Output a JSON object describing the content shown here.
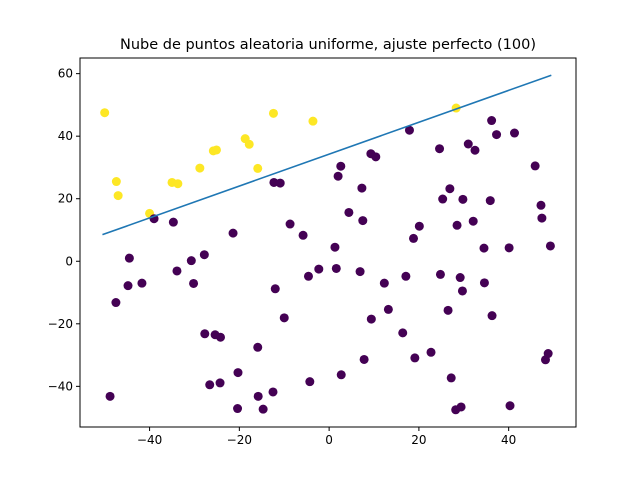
{
  "chart_data": {
    "type": "scatter",
    "title": "Nube de puntos aleatoria uniforme, ajuste perfecto (100)",
    "xlabel": "",
    "ylabel": "",
    "xlim": [
      -55.5,
      55
    ],
    "ylim": [
      -53,
      65
    ],
    "xticks": [
      -40,
      -20,
      0,
      20,
      40
    ],
    "yticks": [
      -40,
      -20,
      0,
      20,
      40,
      60
    ],
    "xtick_labels": [
      "−40",
      "−20",
      "0",
      "20",
      "40"
    ],
    "ytick_labels": [
      "−40",
      "−20",
      "0",
      "20",
      "40",
      "60"
    ],
    "grid": false,
    "legend": "none",
    "colors": {
      "above_line": "#fde725",
      "below_line": "#440154",
      "fit_line": "#1f77b4"
    },
    "fit_line": {
      "x": [
        -50.5,
        49.5
      ],
      "y": [
        8.5,
        59.5
      ]
    },
    "series": [
      {
        "class": "above",
        "points": [
          [
            -50.0,
            47.5
          ],
          [
            -47.4,
            25.5
          ],
          [
            -47.0,
            21.0
          ],
          [
            -40.0,
            15.3
          ],
          [
            -35.0,
            25.2
          ],
          [
            -33.7,
            24.8
          ],
          [
            -28.8,
            29.8
          ],
          [
            -25.8,
            35.3
          ],
          [
            -25.1,
            35.6
          ],
          [
            -18.7,
            39.2
          ],
          [
            -17.8,
            37.4
          ],
          [
            -15.9,
            29.7
          ],
          [
            -12.4,
            47.3
          ],
          [
            -3.6,
            44.8
          ],
          [
            28.3,
            49.0
          ]
        ]
      },
      {
        "class": "below",
        "points": [
          [
            -48.8,
            -43.2
          ],
          [
            -47.5,
            -13.2
          ],
          [
            -44.8,
            -7.8
          ],
          [
            -44.5,
            1.0
          ],
          [
            -41.7,
            -7.0
          ],
          [
            -39.0,
            13.6
          ],
          [
            -34.7,
            12.5
          ],
          [
            -33.9,
            -3.1
          ],
          [
            -30.7,
            0.2
          ],
          [
            -30.2,
            -7.1
          ],
          [
            -27.8,
            2.1
          ],
          [
            -27.7,
            -23.2
          ],
          [
            -26.6,
            -39.5
          ],
          [
            -25.4,
            -23.5
          ],
          [
            -24.3,
            -38.9
          ],
          [
            -24.2,
            -24.3
          ],
          [
            -21.4,
            9.0
          ],
          [
            -20.3,
            -35.6
          ],
          [
            -20.4,
            -47.1
          ],
          [
            -15.9,
            -27.5
          ],
          [
            -15.8,
            -43.2
          ],
          [
            -14.7,
            -47.3
          ],
          [
            -12.5,
            -41.8
          ],
          [
            -12.3,
            25.2
          ],
          [
            -12.0,
            -8.8
          ],
          [
            -10.9,
            25.0
          ],
          [
            -10.0,
            -18.1
          ],
          [
            -8.7,
            11.9
          ],
          [
            -5.8,
            8.3
          ],
          [
            -4.6,
            -4.8
          ],
          [
            -4.3,
            -38.5
          ],
          [
            -2.3,
            -2.5
          ],
          [
            1.3,
            4.5
          ],
          [
            1.6,
            -2.3
          ],
          [
            2.0,
            27.2
          ],
          [
            2.6,
            30.4
          ],
          [
            2.7,
            -36.3
          ],
          [
            4.4,
            15.6
          ],
          [
            6.9,
            -3.3
          ],
          [
            7.3,
            23.4
          ],
          [
            7.5,
            13.0
          ],
          [
            7.8,
            -31.4
          ],
          [
            9.3,
            34.4
          ],
          [
            9.4,
            -18.5
          ],
          [
            10.4,
            33.4
          ],
          [
            12.3,
            -7.0
          ],
          [
            13.2,
            -15.4
          ],
          [
            16.4,
            -22.9
          ],
          [
            17.1,
            -4.8
          ],
          [
            17.9,
            41.9
          ],
          [
            18.8,
            7.3
          ],
          [
            19.1,
            -30.9
          ],
          [
            20.1,
            11.2
          ],
          [
            22.7,
            -29.1
          ],
          [
            24.6,
            36.0
          ],
          [
            24.8,
            -4.2
          ],
          [
            25.3,
            19.9
          ],
          [
            26.5,
            -15.7
          ],
          [
            26.9,
            23.2
          ],
          [
            27.2,
            -37.3
          ],
          [
            28.2,
            -47.5
          ],
          [
            28.5,
            11.5
          ],
          [
            29.2,
            -5.2
          ],
          [
            29.4,
            -46.6
          ],
          [
            29.7,
            -9.5
          ],
          [
            29.8,
            19.8
          ],
          [
            31.0,
            37.5
          ],
          [
            32.1,
            12.8
          ],
          [
            32.5,
            35.5
          ],
          [
            34.5,
            4.2
          ],
          [
            34.6,
            -6.9
          ],
          [
            35.9,
            19.4
          ],
          [
            36.2,
            45.0
          ],
          [
            36.3,
            -17.4
          ],
          [
            37.3,
            40.5
          ],
          [
            40.1,
            4.3
          ],
          [
            40.3,
            -46.2
          ],
          [
            41.3,
            41.0
          ],
          [
            45.9,
            30.5
          ],
          [
            47.2,
            17.9
          ],
          [
            47.4,
            13.8
          ],
          [
            48.2,
            -31.5
          ],
          [
            48.8,
            -29.5
          ],
          [
            49.3,
            4.9
          ]
        ]
      }
    ]
  }
}
